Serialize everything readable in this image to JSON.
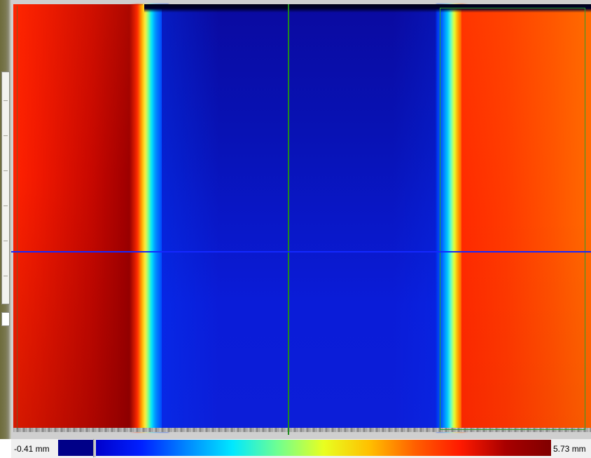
{
  "color_scale": {
    "min_label": "-0.41 mm",
    "max_label": "5.73 mm",
    "min_swatch_color": "#000088",
    "stops": [
      "#0000cc",
      "#0020ff",
      "#0088ff",
      "#00e8ff",
      "#70ff90",
      "#e8ff20",
      "#ffc000",
      "#ff6000",
      "#ff1a00",
      "#a80000",
      "#800000"
    ]
  },
  "colors": {
    "horizontal_cursor": "#1428ff",
    "vertical_cursor": "#1f8a1f",
    "roi_border": "#2aa02a",
    "low_region": "#0b1bd0",
    "high_region_left": "#c80800",
    "high_region_right": "#ff4a00"
  }
}
